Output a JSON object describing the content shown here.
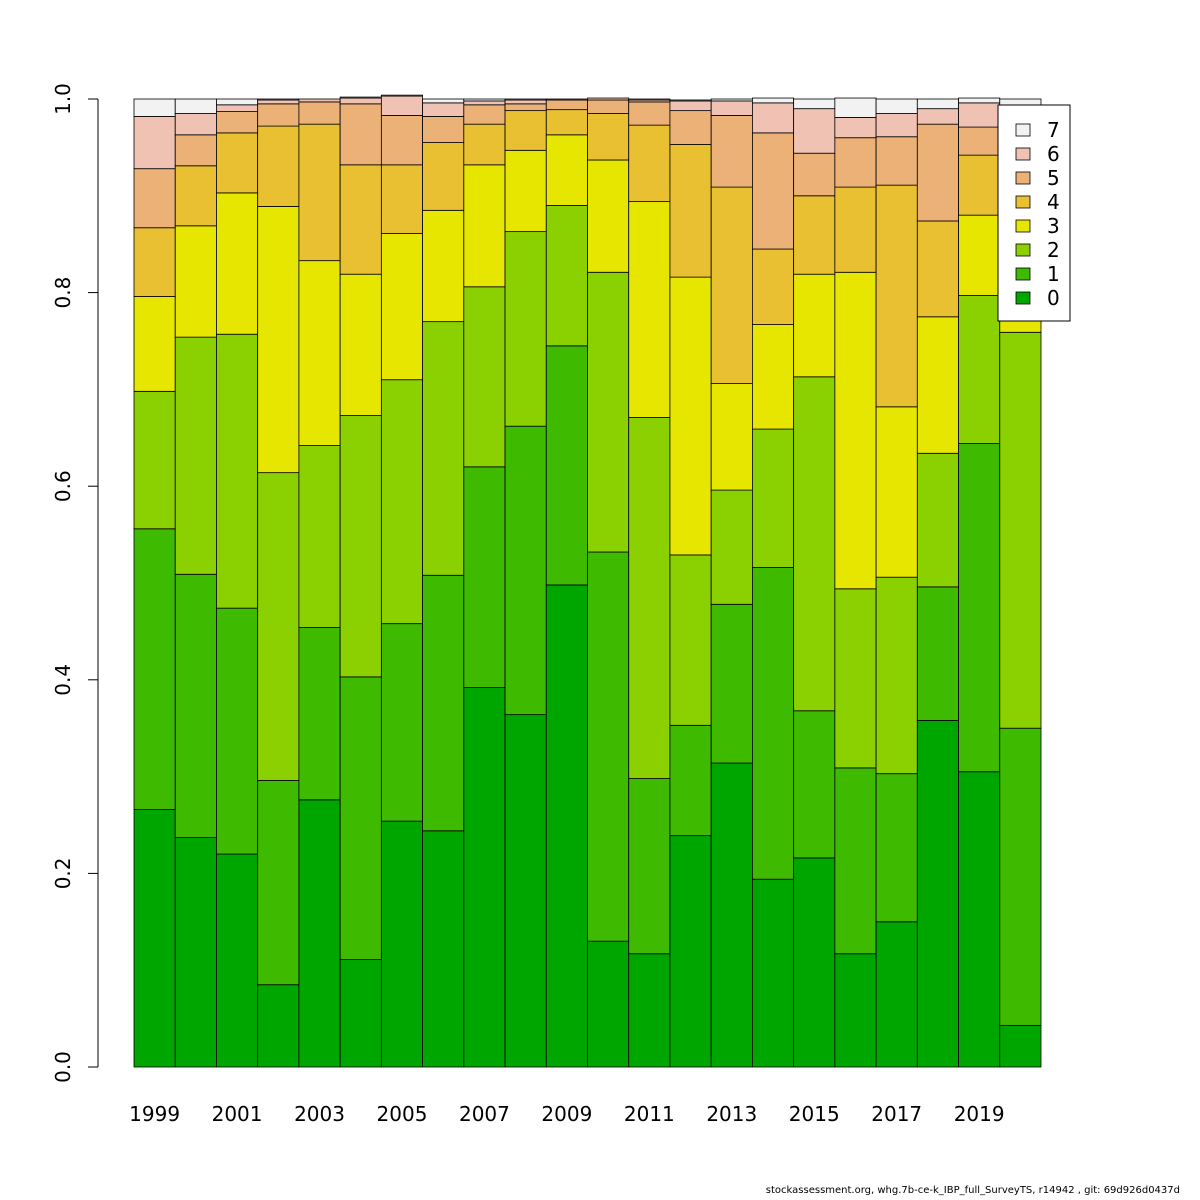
{
  "chart_data": {
    "type": "bar",
    "stacked": true,
    "title": "",
    "xlabel": "",
    "ylabel": "",
    "ylim": [
      0,
      1
    ],
    "y_ticks": [
      "0.0",
      "0.2",
      "0.4",
      "0.6",
      "0.8",
      "1.0"
    ],
    "categories": [
      "1999",
      "2000",
      "2001",
      "2002",
      "2003",
      "2004",
      "2005",
      "2006",
      "2007",
      "2008",
      "2009",
      "2010",
      "2011",
      "2012",
      "2013",
      "2014",
      "2015",
      "2016",
      "2017",
      "2018",
      "2019",
      "2020"
    ],
    "x_tick_labels": [
      "1999",
      "",
      "2001",
      "",
      "2003",
      "",
      "2005",
      "",
      "2007",
      "",
      "2009",
      "",
      "2011",
      "",
      "2013",
      "",
      "2015",
      "",
      "2017",
      "",
      "2019",
      ""
    ],
    "legend_position": "top-right",
    "series": [
      {
        "name": "0",
        "color": "#00a600",
        "values": [
          0.266,
          0.237,
          0.22,
          0.085,
          0.276,
          0.111,
          0.254,
          0.244,
          0.392,
          0.364,
          0.498,
          0.13,
          0.117,
          0.239,
          0.314,
          0.194,
          0.216,
          0.117,
          0.15,
          0.358,
          0.305,
          0.043
        ]
      },
      {
        "name": "1",
        "color": "#3eba00",
        "values": [
          0.29,
          0.272,
          0.254,
          0.211,
          0.178,
          0.292,
          0.204,
          0.264,
          0.228,
          0.298,
          0.247,
          0.402,
          0.181,
          0.114,
          0.164,
          0.322,
          0.152,
          0.192,
          0.153,
          0.138,
          0.339,
          0.307
        ]
      },
      {
        "name": "2",
        "color": "#8bd000",
        "values": [
          0.142,
          0.245,
          0.283,
          0.318,
          0.188,
          0.27,
          0.252,
          0.262,
          0.186,
          0.201,
          0.145,
          0.289,
          0.373,
          0.176,
          0.118,
          0.143,
          0.345,
          0.185,
          0.203,
          0.138,
          0.153,
          0.409
        ]
      },
      {
        "name": "3",
        "color": "#e6e600",
        "values": [
          0.098,
          0.115,
          0.146,
          0.275,
          0.191,
          0.146,
          0.151,
          0.115,
          0.126,
          0.084,
          0.073,
          0.116,
          0.223,
          0.287,
          0.11,
          0.108,
          0.106,
          0.327,
          0.176,
          0.141,
          0.083,
          0.012
        ]
      },
      {
        "name": "4",
        "color": "#e8c032",
        "values": [
          0.071,
          0.062,
          0.062,
          0.083,
          0.141,
          0.113,
          0.071,
          0.07,
          0.042,
          0.041,
          0.026,
          0.048,
          0.079,
          0.137,
          0.203,
          0.078,
          0.081,
          0.088,
          0.229,
          0.099,
          0.062,
          0.023
        ]
      },
      {
        "name": "5",
        "color": "#ecb176",
        "values": [
          0.061,
          0.032,
          0.022,
          0.023,
          0.023,
          0.063,
          0.051,
          0.027,
          0.02,
          0.007,
          0.01,
          0.014,
          0.024,
          0.035,
          0.074,
          0.12,
          0.044,
          0.051,
          0.05,
          0.1,
          0.029,
          0.028
        ]
      },
      {
        "name": "6",
        "color": "#efc2b3",
        "values": [
          0.054,
          0.022,
          0.007,
          0.004,
          0.003,
          0.006,
          0.02,
          0.014,
          0.004,
          0.004,
          0.001,
          0.002,
          0.002,
          0.01,
          0.015,
          0.031,
          0.046,
          0.021,
          0.024,
          0.016,
          0.025,
          0.008
        ]
      },
      {
        "name": "7",
        "color": "#f2f2f2",
        "values": [
          0.018,
          0.015,
          0.006,
          0.001,
          0.0,
          0.001,
          0.001,
          0.004,
          0.002,
          0.001,
          0.0,
          0.0,
          0.001,
          0.001,
          0.002,
          0.005,
          0.01,
          0.02,
          0.015,
          0.01,
          0.005,
          0.17
        ]
      }
    ]
  },
  "footer": {
    "note": "stockassessment.org, whg.7b-ce-k_IBP_full_SurveyTS, r14942 , git: 69d926d0437d"
  }
}
